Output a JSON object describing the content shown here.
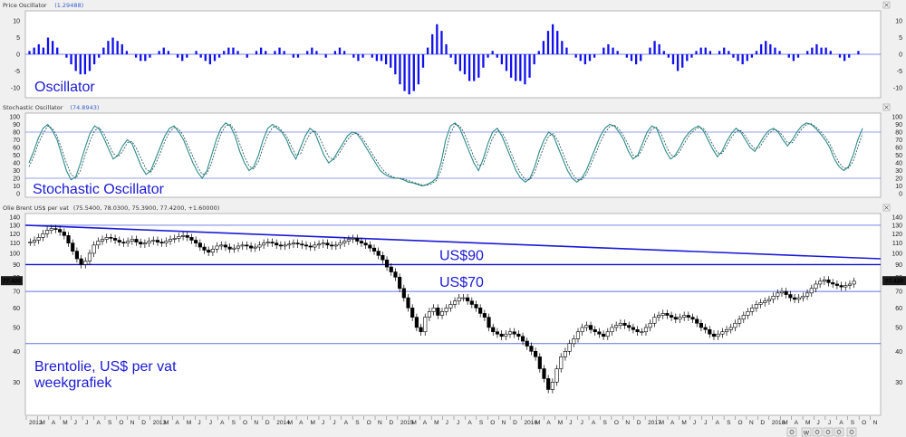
{
  "chart_data": [
    {
      "type": "bar",
      "panel_title": "Price Oscillator",
      "current_value": "(1.29488)",
      "annotation": "Oscillator",
      "ylim": [
        -13,
        13
      ],
      "yticks": [
        10,
        5,
        0,
        -5,
        -10
      ],
      "color": "#1010ee",
      "values": [
        1,
        2,
        3,
        2,
        5,
        4,
        2,
        0,
        -1,
        -3,
        -5,
        -6,
        -6,
        -5,
        -3,
        -1,
        2,
        4,
        5,
        4,
        3,
        1,
        0,
        -1,
        -2,
        -2,
        -1,
        0,
        1,
        2,
        1,
        0,
        -1,
        -2,
        -1,
        0,
        1,
        -1,
        -2,
        -3,
        -2,
        -1,
        1,
        2,
        2,
        1,
        0,
        -1,
        0,
        1,
        2,
        1,
        0,
        1,
        2,
        1,
        0,
        -1,
        -1,
        0,
        1,
        2,
        1,
        0,
        -1,
        0,
        1,
        2,
        1,
        0,
        -1,
        -2,
        -1,
        0,
        -1,
        -2,
        -2,
        -3,
        -4,
        -6,
        -9,
        -11,
        -12,
        -11,
        -9,
        -4,
        2,
        6,
        9,
        7,
        3,
        -1,
        -3,
        -5,
        -6,
        -8,
        -8,
        -7,
        -4,
        -1,
        1,
        -1,
        -3,
        -5,
        -7,
        -8,
        -8,
        -9,
        -7,
        -3,
        1,
        4,
        7,
        9,
        7,
        4,
        2,
        0,
        -1,
        -2,
        -3,
        -2,
        -1,
        0,
        2,
        3,
        2,
        1,
        0,
        -1,
        -2,
        -3,
        -2,
        0,
        2,
        4,
        3,
        1,
        -1,
        -3,
        -5,
        -4,
        -2,
        -1,
        1,
        2,
        2,
        1,
        0,
        1,
        2,
        1,
        -1,
        -2,
        -3,
        -2,
        -1,
        1,
        3,
        4,
        3,
        2,
        1,
        0,
        -1,
        -2,
        -1,
        0,
        1,
        2,
        3,
        2,
        2,
        1,
        0,
        -1,
        -2,
        -1,
        0,
        1
      ]
    },
    {
      "type": "line",
      "panel_title": "Stochastic Oscillator",
      "current_value": "(74.8943)",
      "annotation": "Stochastic Oscillator",
      "ylim": [
        0,
        100
      ],
      "yticks": [
        100,
        90,
        80,
        70,
        60,
        50,
        40,
        30,
        20,
        10,
        0
      ],
      "reference_lines": [
        80,
        20
      ],
      "series": [
        {
          "values": [
            40,
            55,
            72,
            85,
            90,
            82,
            70,
            50,
            30,
            18,
            22,
            40,
            60,
            78,
            88,
            84,
            72,
            58,
            45,
            50,
            62,
            70,
            65,
            50,
            35,
            25,
            30,
            45,
            60,
            75,
            85,
            88,
            80,
            70,
            55,
            40,
            28,
            20,
            30,
            50,
            70,
            85,
            92,
            88,
            75,
            55,
            40,
            30,
            35,
            50,
            70,
            85,
            90,
            85,
            80,
            70,
            55,
            45,
            60,
            75,
            85,
            80,
            65,
            50,
            40,
            45,
            55,
            65,
            75,
            80,
            78,
            70,
            60,
            50,
            40,
            30,
            25,
            22,
            20,
            20,
            18,
            15,
            14,
            12,
            10,
            12,
            15,
            20,
            40,
            70,
            88,
            92,
            85,
            70,
            55,
            40,
            30,
            45,
            65,
            80,
            85,
            75,
            60,
            45,
            30,
            20,
            15,
            20,
            35,
            55,
            70,
            80,
            75,
            60,
            45,
            30,
            20,
            15,
            20,
            30,
            45,
            60,
            75,
            85,
            90,
            88,
            80,
            70,
            55,
            45,
            50,
            65,
            80,
            88,
            85,
            70,
            55,
            45,
            50,
            60,
            72,
            80,
            85,
            88,
            82,
            70,
            58,
            48,
            55,
            68,
            78,
            85,
            80,
            70,
            60,
            55,
            65,
            75,
            82,
            85,
            80,
            70,
            62,
            70,
            80,
            88,
            92,
            90,
            85,
            78,
            70,
            60,
            45,
            35,
            30,
            35,
            50,
            70,
            85
          ]
        },
        {
          "values": [
            35,
            48,
            65,
            78,
            88,
            85,
            75,
            58,
            40,
            25,
            20,
            30,
            50,
            68,
            82,
            86,
            78,
            65,
            52,
            48,
            55,
            66,
            68,
            58,
            45,
            32,
            28,
            38,
            52,
            68,
            80,
            86,
            84,
            75,
            62,
            48,
            35,
            25,
            26,
            40,
            60,
            78,
            88,
            90,
            82,
            65,
            48,
            36,
            32,
            42,
            60,
            76,
            86,
            88,
            82,
            75,
            62,
            50,
            52,
            66,
            78,
            82,
            74,
            60,
            48,
            44,
            50,
            60,
            70,
            77,
            79,
            74,
            65,
            55,
            45,
            36,
            28,
            24,
            21,
            20,
            19,
            17,
            15,
            13,
            11,
            11,
            13,
            17,
            30,
            55,
            78,
            90,
            88,
            78,
            63,
            48,
            36,
            38,
            55,
            72,
            82,
            80,
            68,
            52,
            38,
            26,
            18,
            18,
            28,
            45,
            62,
            75,
            78,
            68,
            53,
            38,
            26,
            18,
            18,
            25,
            38,
            52,
            67,
            79,
            87,
            89,
            84,
            75,
            63,
            50,
            48,
            58,
            72,
            84,
            86,
            78,
            63,
            51,
            48,
            55,
            66,
            76,
            82,
            86,
            85,
            76,
            64,
            53,
            52,
            62,
            73,
            81,
            82,
            75,
            65,
            58,
            60,
            70,
            78,
            83,
            82,
            75,
            66,
            66,
            75,
            84,
            90,
            91,
            87,
            81,
            74,
            65,
            52,
            40,
            33,
            33,
            42,
            60,
            78
          ]
        }
      ]
    },
    {
      "type": "candlestick",
      "panel_title": "Olie Brent US$ per vat",
      "ohlc_readout": "(75.5400, 78.0300, 75.3900, 77.4200, +1.60000)",
      "price_badge": "77.420",
      "annotation": [
        "Brentolie, US$ per vat",
        "weekgrafiek"
      ],
      "ylim": [
        22,
        145
      ],
      "yscale": "log",
      "yticks": [
        140,
        130,
        120,
        110,
        100,
        90,
        80,
        70,
        60,
        50,
        40,
        30
      ],
      "hlines": [
        {
          "y": 130,
          "label": ""
        },
        {
          "y": 90,
          "label": "US$90"
        },
        {
          "y": 70,
          "label": "US$70"
        },
        {
          "y": 43,
          "label": ""
        }
      ],
      "trendline": {
        "from": {
          "x": "2012-01",
          "y": 130
        },
        "to": {
          "x": "2018-10",
          "y": 95
        }
      },
      "close": [
        111,
        113,
        116,
        120,
        124,
        126,
        125,
        122,
        118,
        110,
        102,
        95,
        90,
        93,
        100,
        108,
        112,
        114,
        116,
        115,
        113,
        111,
        110,
        112,
        114,
        111,
        109,
        110,
        112,
        113,
        111,
        110,
        112,
        114,
        115,
        117,
        118,
        116,
        113,
        110,
        106,
        103,
        101,
        104,
        107,
        108,
        106,
        104,
        105,
        107,
        108,
        107,
        105,
        106,
        108,
        110,
        111,
        110,
        108,
        107,
        108,
        109,
        110,
        109,
        108,
        107,
        106,
        108,
        109,
        110,
        108,
        107,
        108,
        110,
        112,
        114,
        115,
        112,
        110,
        108,
        105,
        102,
        98,
        94,
        88,
        84,
        80,
        72,
        66,
        60,
        55,
        50,
        48,
        55,
        58,
        60,
        56,
        58,
        60,
        62,
        64,
        66,
        66,
        64,
        62,
        60,
        57,
        55,
        50,
        48,
        47,
        46,
        47,
        48,
        47,
        46,
        44,
        42,
        40,
        38,
        34,
        31,
        28,
        30,
        34,
        38,
        40,
        43,
        45,
        48,
        50,
        51,
        49,
        48,
        47,
        46,
        48,
        50,
        51,
        52,
        51,
        50,
        49,
        48,
        48,
        50,
        52,
        55,
        56,
        57,
        56,
        55,
        54,
        55,
        56,
        55,
        54,
        52,
        50,
        49,
        47,
        46,
        47,
        48,
        49,
        50,
        52,
        54,
        56,
        58,
        60,
        62,
        63,
        64,
        65,
        67,
        69,
        70,
        68,
        66,
        65,
        66,
        67,
        69,
        72,
        75,
        77,
        78,
        76,
        75,
        74,
        73,
        74,
        75,
        77
      ]
    }
  ],
  "time_axis": {
    "labels": [
      "2012",
      "M",
      "A",
      "M",
      "J",
      "J",
      "A",
      "S",
      "O",
      "N",
      "D",
      "2013",
      "M",
      "A",
      "M",
      "J",
      "J",
      "A",
      "S",
      "O",
      "N",
      "D",
      "2014",
      "M",
      "A",
      "M",
      "J",
      "J",
      "A",
      "S",
      "O",
      "N",
      "D",
      "2015",
      "M",
      "A",
      "M",
      "J",
      "J",
      "A",
      "S",
      "O",
      "N",
      "D",
      "2016",
      "M",
      "A",
      "M",
      "J",
      "J",
      "A",
      "S",
      "O",
      "N",
      "D",
      "2017",
      "M",
      "A",
      "M",
      "J",
      "J",
      "A",
      "S",
      "O",
      "N",
      "D",
      "2018",
      "M",
      "A",
      "M",
      "J",
      "J",
      "A",
      "S",
      "O",
      "N"
    ]
  },
  "toolbar": {
    "icons": [
      "scroll-right-icon",
      "week-icon",
      "scroll-left-icon",
      "zoom-in-icon",
      "zoom-out-icon",
      "settings-icon"
    ],
    "labels": [
      "W"
    ]
  }
}
